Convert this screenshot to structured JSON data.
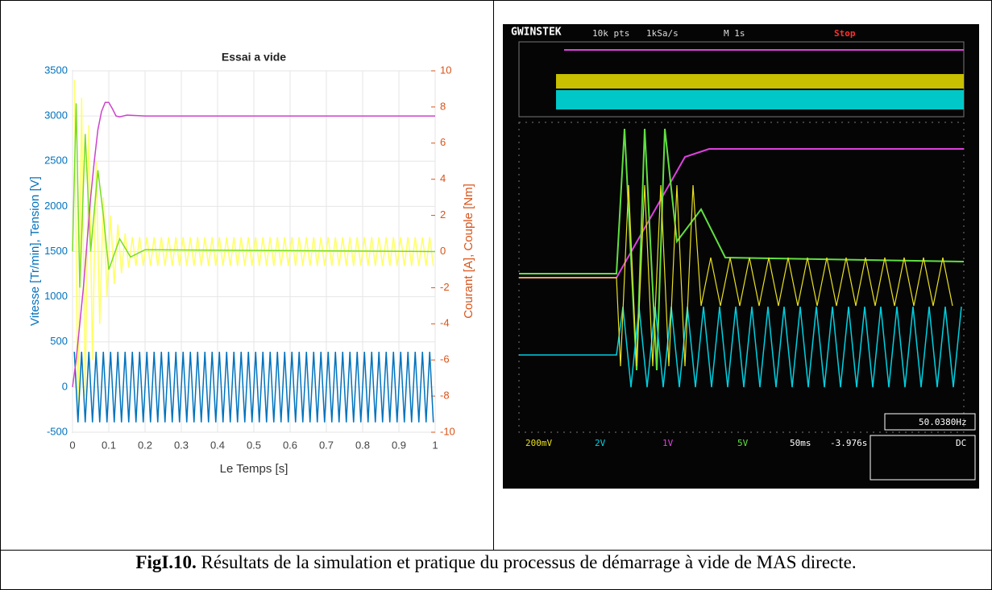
{
  "chart_data": {
    "type": "line",
    "title": "Essai a vide",
    "xlabel": "Le Temps [s]",
    "ylabel": "Vitesse [Tr/min], Tension [V]",
    "y2label": "Courant [A], Couple [Nm]",
    "xlim": [
      0,
      1
    ],
    "xticks": [
      0,
      0.1,
      0.2,
      0.3,
      0.4,
      0.5,
      0.6,
      0.7,
      0.8,
      0.9,
      1
    ],
    "ylim": [
      -500,
      3500
    ],
    "yticks": [
      -500,
      0,
      500,
      1000,
      1500,
      2000,
      2500,
      3000,
      3500
    ],
    "y2lim": [
      -10,
      10
    ],
    "y2ticks": [
      -10,
      -8,
      -6,
      -4,
      -2,
      0,
      2,
      4,
      6,
      8,
      10
    ],
    "grid": true,
    "x": [
      0.005,
      0.015,
      0.025,
      0.035,
      0.045,
      0.055,
      0.065,
      0.075,
      0.085,
      0.095,
      0.105,
      0.115,
      0.125,
      0.135,
      0.145,
      0.155,
      0.165,
      0.175,
      0.185,
      0.195,
      0.205,
      0.215,
      0.225,
      0.235,
      0.245,
      0.255,
      0.265,
      0.275,
      0.285,
      0.295,
      0.305,
      0.315,
      0.325,
      0.335,
      0.345,
      0.355,
      0.365,
      0.375,
      0.385,
      0.395,
      0.405,
      0.415,
      0.425,
      0.435,
      0.445,
      0.455,
      0.465,
      0.475,
      0.485,
      0.495,
      0.505,
      0.515,
      0.525,
      0.535,
      0.545,
      0.555,
      0.565,
      0.575,
      0.585,
      0.595,
      0.605,
      0.615,
      0.625,
      0.635,
      0.645,
      0.655,
      0.665,
      0.675,
      0.685,
      0.695,
      0.705,
      0.715,
      0.725,
      0.735,
      0.745,
      0.755,
      0.765,
      0.775,
      0.785,
      0.795,
      0.805,
      0.815,
      0.825,
      0.835,
      0.845,
      0.855,
      0.865,
      0.875,
      0.885,
      0.895,
      0.905,
      0.915,
      0.925,
      0.935,
      0.945,
      0.955,
      0.965,
      0.975,
      0.985,
      0.995
    ],
    "series": [
      {
        "color": "#ffff66",
        "axis": "y2",
        "values": [
          9.5,
          -9,
          8.5,
          -8,
          7,
          -6,
          5,
          -4,
          3,
          -2.5,
          2,
          -1.8,
          1.5,
          -1.2,
          1,
          -0.9,
          0.8,
          -0.8,
          0.8,
          -0.8,
          0.8,
          -0.8,
          0.8,
          -0.8,
          0.8,
          -0.8,
          0.8,
          -0.8,
          0.8,
          -0.8,
          0.8,
          -0.8,
          0.8,
          -0.8,
          0.8,
          -0.8,
          0.8,
          -0.8,
          0.8,
          -0.8,
          0.8,
          -0.8,
          0.8,
          -0.8,
          0.8,
          -0.8,
          0.8,
          -0.8,
          0.8,
          -0.8,
          0.8,
          -0.8,
          0.8,
          -0.8,
          0.8,
          -0.8,
          0.8,
          -0.8,
          0.8,
          -0.8,
          0.8,
          -0.8,
          0.8,
          -0.8,
          0.8,
          -0.8,
          0.8,
          -0.8,
          0.8,
          -0.8,
          0.8,
          -0.8,
          0.8,
          -0.8,
          0.8,
          -0.8,
          0.8,
          -0.8,
          0.8,
          -0.8,
          0.8,
          -0.8,
          0.8,
          -0.8,
          0.8,
          -0.8,
          0.8,
          -0.8,
          0.8,
          -0.8,
          0.8,
          -0.8,
          0.8,
          -0.8,
          0.8,
          -0.8,
          0.8,
          -0.8,
          0.8,
          -0.8
        ]
      },
      {
        "color": "#0072bd",
        "values": [
          390,
          -390,
          390,
          -390,
          390,
          -390,
          390,
          -390,
          390,
          -390,
          390,
          -390,
          390,
          -390,
          390,
          -390,
          390,
          -390,
          390,
          -390,
          390,
          -390,
          390,
          -390,
          390,
          -390,
          390,
          -390,
          390,
          -390,
          390,
          -390,
          390,
          -390,
          390,
          -390,
          390,
          -390,
          390,
          -390,
          390,
          -390,
          390,
          -390,
          390,
          -390,
          390,
          -390,
          390,
          -390,
          390,
          -390,
          390,
          -390,
          390,
          -390,
          390,
          -390,
          390,
          -390,
          390,
          -390,
          390,
          -390,
          390,
          -390,
          390,
          -390,
          390,
          -390,
          390,
          -390,
          390,
          -390,
          390,
          -390,
          390,
          -390,
          390,
          -390,
          390,
          -390,
          390,
          -390,
          390,
          -390,
          390,
          -390,
          390,
          -390,
          390,
          -390,
          390,
          -390,
          390,
          -390,
          390,
          -390,
          390,
          -390
        ]
      },
      {
        "color": "#77dd22",
        "axis": "y2",
        "x": [
          0,
          0.01,
          0.02,
          0.035,
          0.05,
          0.07,
          0.085,
          0.1,
          0.13,
          0.16,
          0.2,
          1
        ],
        "values": [
          0,
          8.2,
          -2,
          6.5,
          0,
          4.5,
          2,
          -1,
          0.7,
          -0.3,
          0.1,
          0
        ]
      },
      {
        "color": "#cc44cc",
        "x": [
          0,
          0.01,
          0.02,
          0.03,
          0.04,
          0.05,
          0.06,
          0.07,
          0.08,
          0.09,
          0.1,
          0.11,
          0.12,
          0.13,
          0.15,
          0.2,
          0.3,
          1
        ],
        "values": [
          0,
          300,
          700,
          1100,
          1600,
          2100,
          2500,
          2850,
          3050,
          3150,
          3150,
          3080,
          3000,
          2990,
          3010,
          3000,
          3000,
          3000
        ]
      }
    ]
  },
  "oscilloscope": {
    "brand": "GWINSTEK",
    "points": "10k pts",
    "rate": "1kSa/s",
    "timebase": "M 1s",
    "status": "Stop",
    "frequency": "50.0380Hz",
    "channels": [
      "200mV",
      "2V",
      "1V",
      "5V"
    ],
    "zoom": "50ms",
    "position": "-3.976s",
    "coupling": "DC"
  },
  "caption": {
    "label": "FigI.10.",
    "text": "Résultats de la simulation  et pratique du processus de démarrage à vide de MAS directe."
  }
}
